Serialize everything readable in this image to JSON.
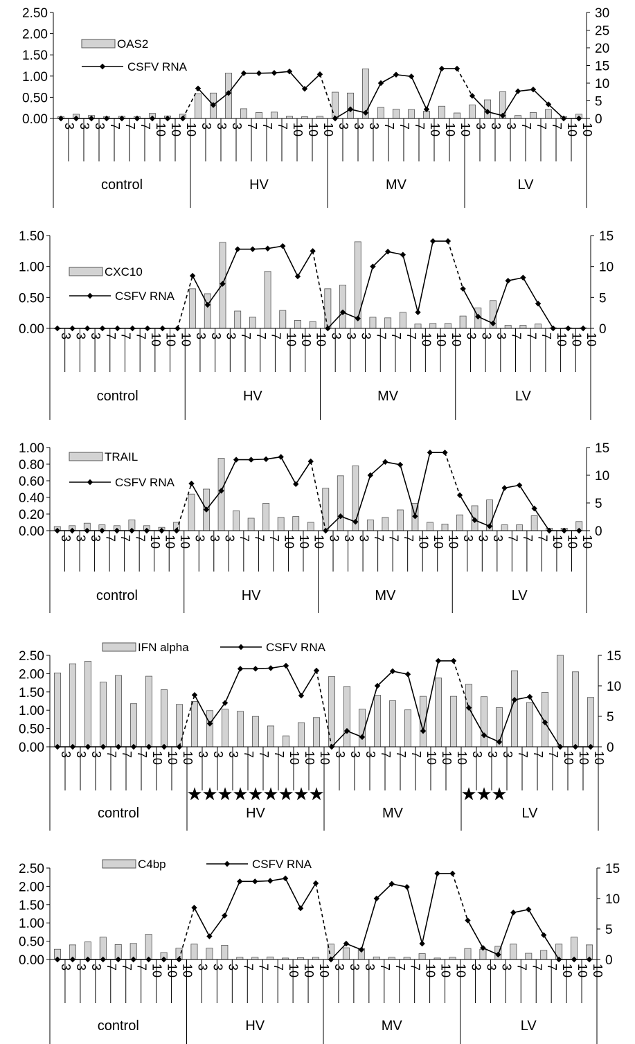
{
  "chart_data": [
    {
      "type": "bar",
      "series": [
        {
          "name": "OAS2",
          "kind": "bar",
          "axis": "left",
          "values": [
            0.04,
            0.1,
            0.07,
            0.04,
            0.05,
            0.04,
            0.12,
            0.06,
            0.1,
            0.58,
            0.6,
            1.07,
            0.23,
            0.14,
            0.15,
            0.05,
            0.04,
            0.05,
            0.62,
            0.6,
            1.17,
            0.26,
            0.22,
            0.21,
            0.17,
            0.29,
            0.13,
            0.32,
            0.44,
            0.63,
            0.07,
            0.14,
            0.21,
            0.04,
            0.1
          ]
        },
        {
          "name": "CSFV RNA",
          "kind": "line",
          "axis": "right",
          "values": [
            0,
            0,
            0,
            0,
            0,
            0,
            0,
            0,
            0,
            8.5,
            3.8,
            7.2,
            12.8,
            12.8,
            12.9,
            13.3,
            8.4,
            12.5,
            0,
            2.6,
            1.6,
            10,
            12.4,
            11.9,
            2.6,
            14.1,
            14.1,
            6.4,
            1.9,
            0.8,
            7.7,
            8.2,
            4,
            0,
            0
          ]
        }
      ],
      "ylim": [
        0,
        2.5
      ],
      "y2lim": [
        0,
        30
      ],
      "ytick_labels": [
        "0.00",
        "0.50",
        "1.00",
        "1.50",
        "2.00",
        "2.50"
      ],
      "y2tick_labels": [
        "0",
        "5",
        "10",
        "15",
        "20",
        "25",
        "30"
      ],
      "categories": [
        "3",
        "3",
        "3",
        "7",
        "7",
        "7",
        "10",
        "10",
        "10",
        "3",
        "3",
        "3",
        "7",
        "7",
        "7",
        "10",
        "10",
        "10",
        "3",
        "3",
        "3",
        "7",
        "7",
        "7",
        "10",
        "10",
        "10",
        "3",
        "3",
        "3",
        "7",
        "7",
        "7",
        "10",
        "10"
      ],
      "groups": [
        "control",
        "HV",
        "MV",
        "LV"
      ],
      "group_sizes": [
        9,
        9,
        9,
        8
      ],
      "stars": [],
      "legend_position": "top-left-stacked"
    },
    {
      "type": "bar",
      "series": [
        {
          "name": "CXC10",
          "kind": "bar",
          "axis": "left",
          "values": [
            0,
            0,
            0,
            0,
            0,
            0,
            0,
            0,
            0,
            0.64,
            0.56,
            1.39,
            0.28,
            0.18,
            0.92,
            0.29,
            0.13,
            0.11,
            0.64,
            0.7,
            1.4,
            0.18,
            0.17,
            0.26,
            0.07,
            0.08,
            0.08,
            0.2,
            0.33,
            0.45,
            0.05,
            0.05,
            0.07,
            0.01,
            0.01,
            0.01
          ]
        },
        {
          "name": "CSFV RNA",
          "kind": "line",
          "axis": "right",
          "values": [
            0,
            0,
            0,
            0,
            0,
            0,
            0,
            0,
            0,
            8.5,
            3.8,
            7.2,
            12.8,
            12.8,
            12.9,
            13.3,
            8.4,
            12.5,
            0,
            2.6,
            1.6,
            10,
            12.4,
            11.9,
            2.6,
            14.1,
            14.1,
            6.4,
            1.9,
            0.8,
            7.7,
            8.2,
            4,
            0,
            0,
            0
          ]
        }
      ],
      "ylim": [
        0,
        1.5
      ],
      "y2lim": [
        0,
        15
      ],
      "ytick_labels": [
        "0.00",
        "0.50",
        "1.00",
        "1.50"
      ],
      "y2tick_labels": [
        "0",
        "5",
        "10",
        "15"
      ],
      "categories": [
        "3",
        "3",
        "3",
        "7",
        "7",
        "7",
        "10",
        "10",
        "10",
        "3",
        "3",
        "3",
        "7",
        "7",
        "7",
        "10",
        "10",
        "10",
        "3",
        "3",
        "3",
        "7",
        "7",
        "7",
        "10",
        "10",
        "10",
        "3",
        "3",
        "3",
        "7",
        "7",
        "7",
        "10",
        "10",
        "10"
      ],
      "groups": [
        "control",
        "HV",
        "MV",
        "LV"
      ],
      "group_sizes": [
        9,
        9,
        9,
        9
      ],
      "stars": [],
      "legend_position": "left-stacked"
    },
    {
      "type": "bar",
      "series": [
        {
          "name": "TRAIL",
          "kind": "bar",
          "axis": "left",
          "values": [
            0.05,
            0.06,
            0.09,
            0.07,
            0.06,
            0.13,
            0.06,
            0.04,
            0.1,
            0.44,
            0.5,
            0.87,
            0.24,
            0.15,
            0.33,
            0.16,
            0.17,
            0.1,
            0.51,
            0.66,
            0.78,
            0.13,
            0.16,
            0.25,
            0.33,
            0.1,
            0.08,
            0.19,
            0.3,
            0.37,
            0.07,
            0.07,
            0.18,
            0.03,
            0.03,
            0.11
          ]
        },
        {
          "name": "CSFV RNA",
          "kind": "line",
          "axis": "right",
          "values": [
            0,
            0,
            0,
            0,
            0,
            0,
            0,
            0,
            0,
            8.5,
            3.8,
            7.2,
            12.8,
            12.8,
            12.9,
            13.3,
            8.4,
            12.5,
            0,
            2.6,
            1.6,
            10,
            12.4,
            11.9,
            2.6,
            14.1,
            14.1,
            6.4,
            1.9,
            0.8,
            7.7,
            8.2,
            4,
            0,
            0,
            0
          ]
        }
      ],
      "ylim": [
        0,
        1.0
      ],
      "y2lim": [
        0,
        15
      ],
      "ytick_labels": [
        "0.00",
        "0.20",
        "0.40",
        "0.60",
        "0.80",
        "1.00"
      ],
      "y2tick_labels": [
        "0",
        "5",
        "10",
        "15"
      ],
      "categories": [
        "3",
        "3",
        "3",
        "7",
        "7",
        "7",
        "10",
        "10",
        "10",
        "3",
        "3",
        "3",
        "7",
        "7",
        "7",
        "10",
        "10",
        "10",
        "3",
        "3",
        "3",
        "7",
        "7",
        "7",
        "10",
        "10",
        "10",
        "3",
        "3",
        "3",
        "7",
        "7",
        "7",
        "10",
        "10",
        "10"
      ],
      "groups": [
        "control",
        "HV",
        "MV",
        "LV"
      ],
      "group_sizes": [
        9,
        9,
        9,
        9
      ],
      "stars": [],
      "legend_position": "top-left-stacked"
    },
    {
      "type": "bar",
      "series": [
        {
          "name": "IFN alpha",
          "kind": "bar",
          "axis": "left",
          "values": [
            2.02,
            2.27,
            2.34,
            1.77,
            1.95,
            1.18,
            1.93,
            1.56,
            1.16,
            1.24,
            0.99,
            1.03,
            0.97,
            0.83,
            0.57,
            0.3,
            0.66,
            0.8,
            1.92,
            1.65,
            1.03,
            1.41,
            1.26,
            1.01,
            1.38,
            1.88,
            1.38,
            1.71,
            1.37,
            1.07,
            2.08,
            1.21,
            1.49,
            2.6,
            2.05,
            1.35
          ]
        },
        {
          "name": "CSFV RNA",
          "kind": "line",
          "axis": "right",
          "values": [
            0,
            0,
            0,
            0,
            0,
            0,
            0,
            0,
            0,
            8.5,
            3.8,
            7.2,
            12.8,
            12.8,
            12.9,
            13.3,
            8.4,
            12.5,
            0,
            2.6,
            1.6,
            10,
            12.4,
            11.9,
            2.6,
            14.1,
            14.1,
            6.4,
            1.9,
            0.8,
            7.7,
            8.2,
            4,
            0,
            0,
            0
          ]
        }
      ],
      "ylim": [
        0,
        2.5
      ],
      "y2lim": [
        0,
        15
      ],
      "ytick_labels": [
        "0.00",
        "0.50",
        "1.00",
        "1.50",
        "2.00",
        "2.50"
      ],
      "y2tick_labels": [
        "0",
        "5",
        "10",
        "15"
      ],
      "categories": [
        "3",
        "3",
        "3",
        "7",
        "7",
        "7",
        "10",
        "10",
        "10",
        "3",
        "3",
        "3",
        "7",
        "7",
        "7",
        "10",
        "10",
        "10",
        "3",
        "3",
        "3",
        "7",
        "7",
        "7",
        "10",
        "10",
        "10",
        "3",
        "3",
        "3",
        "7",
        "7",
        "7",
        "10",
        "10",
        "10"
      ],
      "groups": [
        "control",
        "HV",
        "MV",
        "LV"
      ],
      "group_sizes": [
        9,
        9,
        9,
        9
      ],
      "stars": [
        9,
        10,
        11,
        12,
        13,
        14,
        15,
        16,
        17,
        27,
        28,
        29
      ],
      "legend_position": "top-row"
    },
    {
      "type": "bar",
      "series": [
        {
          "name": "C4bp",
          "kind": "bar",
          "axis": "left",
          "values": [
            0.28,
            0.4,
            0.48,
            0.61,
            0.41,
            0.44,
            0.69,
            0.19,
            0.31,
            0.42,
            0.31,
            0.39,
            0.06,
            0.06,
            0.07,
            0.04,
            0.05,
            0.06,
            0.42,
            0.32,
            0.3,
            0.07,
            0.06,
            0.06,
            0.16,
            0.04,
            0.06,
            0.3,
            0.28,
            0.36,
            0.42,
            0.17,
            0.25,
            0.42,
            0.61,
            0.4
          ]
        },
        {
          "name": "CSFV RNA",
          "kind": "line",
          "axis": "right",
          "values": [
            0,
            0,
            0,
            0,
            0,
            0,
            0,
            0,
            0,
            8.5,
            3.8,
            7.2,
            12.8,
            12.8,
            12.9,
            13.3,
            8.4,
            12.5,
            0,
            2.6,
            1.6,
            10,
            12.4,
            11.9,
            2.6,
            14.1,
            14.1,
            6.4,
            1.9,
            0.8,
            7.7,
            8.2,
            4,
            0,
            0,
            0
          ]
        }
      ],
      "ylim": [
        0,
        2.5
      ],
      "y2lim": [
        0,
        15
      ],
      "ytick_labels": [
        "0.00",
        "0.50",
        "1.00",
        "1.50",
        "2.00",
        "2.50"
      ],
      "y2tick_labels": [
        "0",
        "5",
        "10",
        "15"
      ],
      "categories": [
        "3",
        "3",
        "3",
        "7",
        "7",
        "7",
        "10",
        "10",
        "10",
        "3",
        "3",
        "3",
        "7",
        "7",
        "7",
        "10",
        "10",
        "10",
        "3",
        "3",
        "3",
        "7",
        "7",
        "7",
        "10",
        "10",
        "10",
        "3",
        "3",
        "3",
        "7",
        "7",
        "7",
        "10",
        "10",
        "10"
      ],
      "groups": [
        "control",
        "HV",
        "MV",
        "LV"
      ],
      "group_sizes": [
        9,
        9,
        9,
        9
      ],
      "stars": [],
      "legend_position": "top-row"
    }
  ],
  "style": {
    "bar_fill": "#d3d3d3",
    "bar_stroke": "#555555",
    "line_color": "#000000"
  }
}
